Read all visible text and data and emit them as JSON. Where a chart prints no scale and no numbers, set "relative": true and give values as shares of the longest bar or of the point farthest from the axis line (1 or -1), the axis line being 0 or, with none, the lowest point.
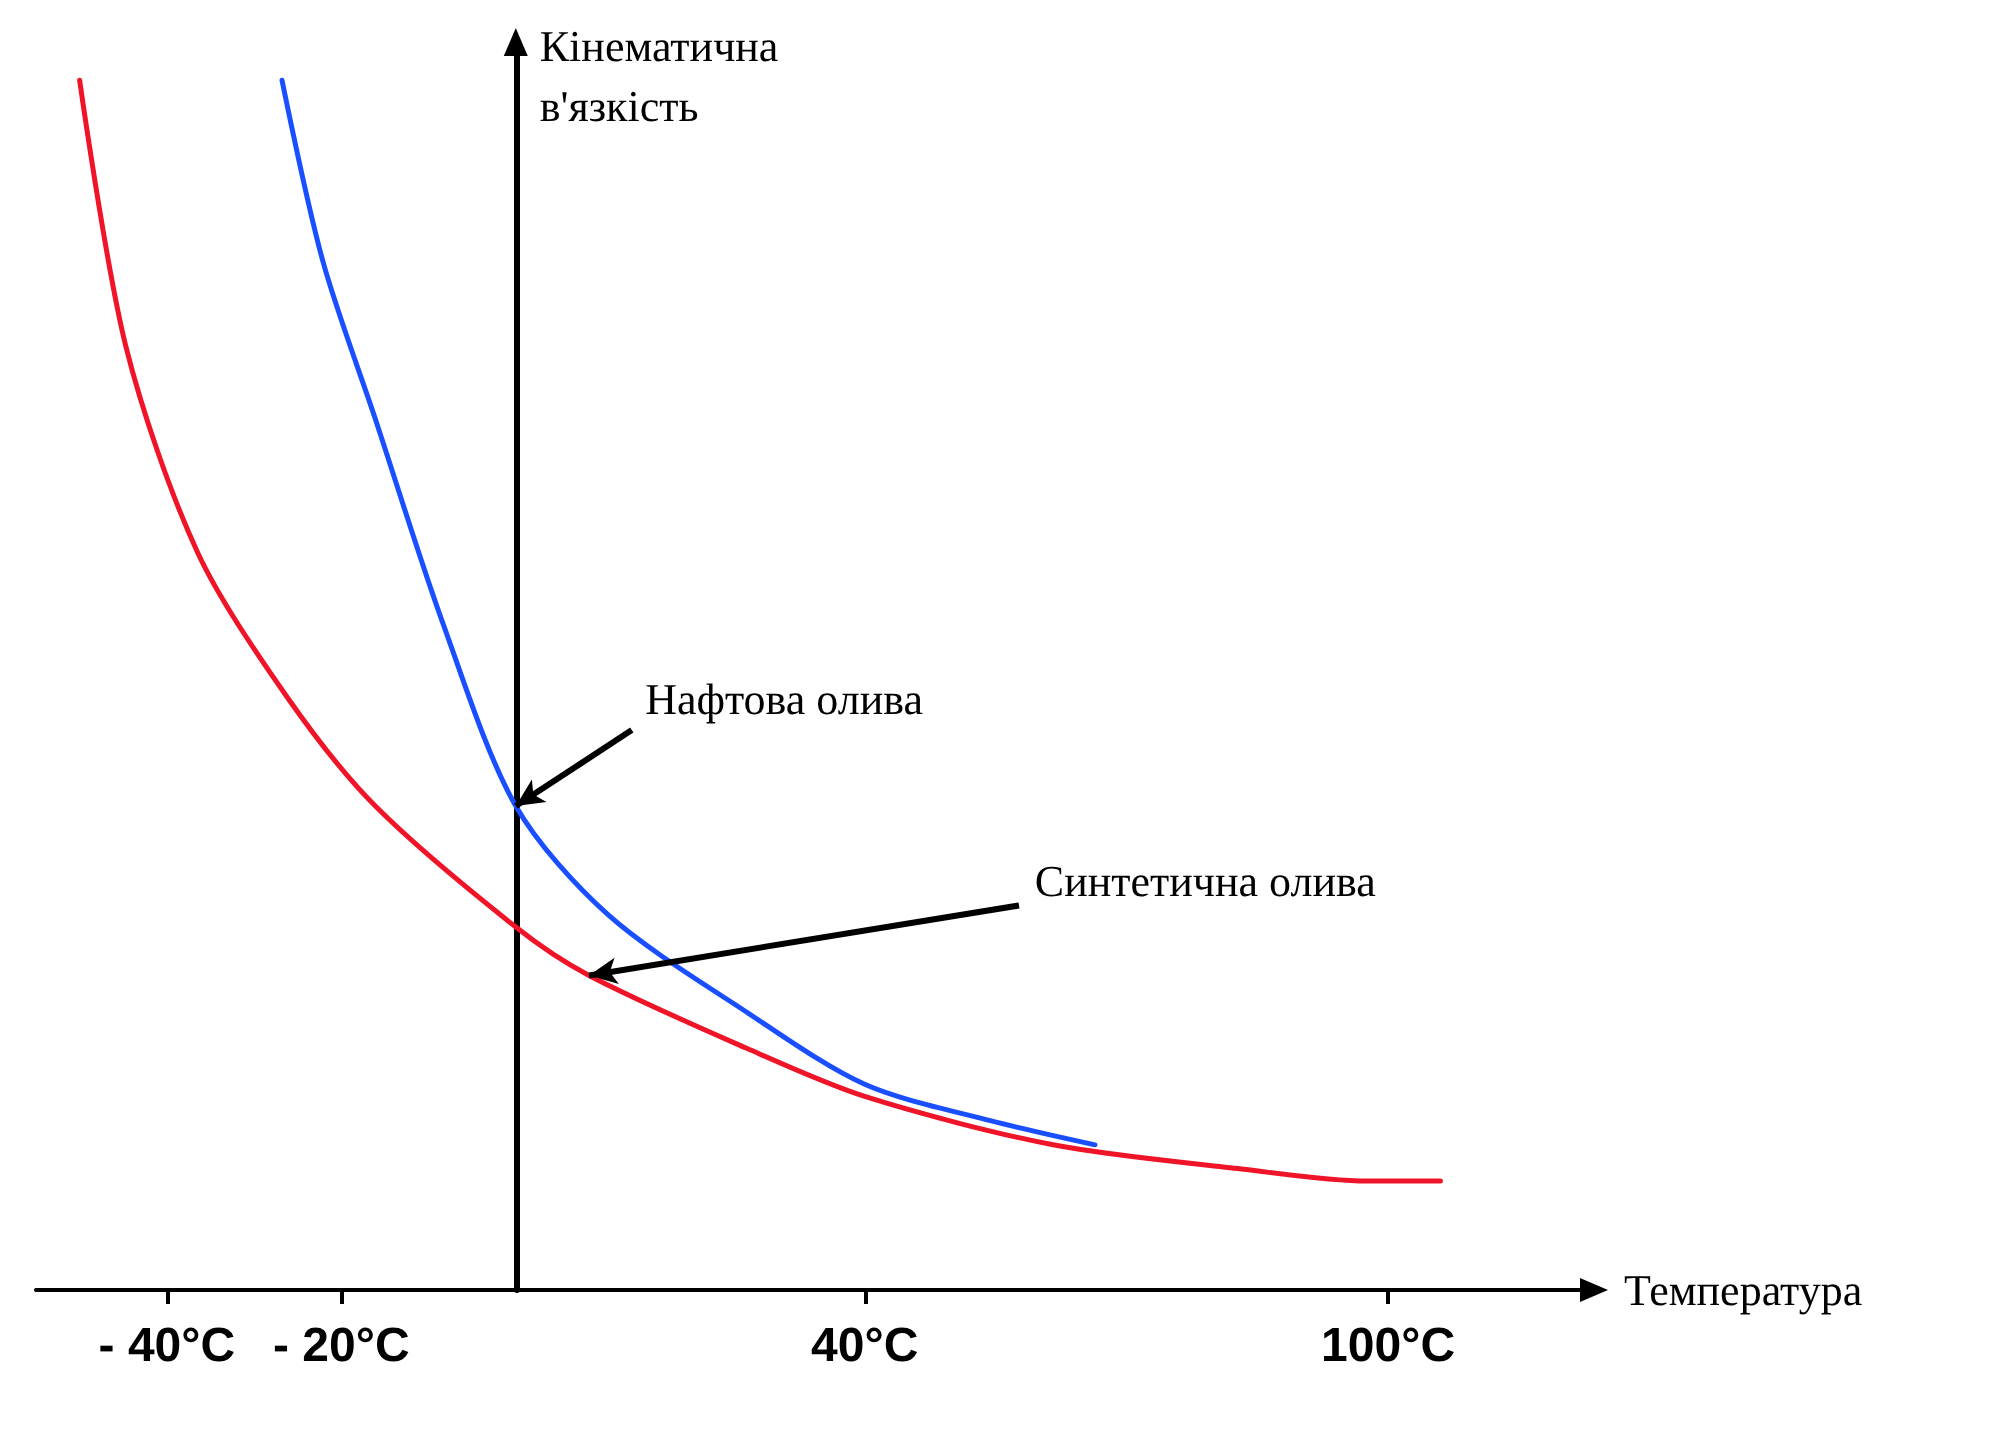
{
  "chart_data": {
    "type": "line",
    "relative": true,
    "xlabel": "Температура",
    "ylabel": "Кінематична\nв'язкість",
    "xlim": [
      -55,
      122
    ],
    "xticks": [
      {
        "value": -40,
        "label": "- 40°C"
      },
      {
        "value": -20,
        "label": "- 20°C"
      },
      {
        "value": 40,
        "label": "40°C"
      },
      {
        "value": 100,
        "label": "100°C"
      }
    ],
    "grid": false,
    "marker": "none",
    "line_style": "solid",
    "series": [
      {
        "color": "#1a4fff",
        "x": [
          -26.8,
          -22.1,
          -16.1,
          -8.3,
          0,
          10.6,
          26.4,
          40,
          54.4,
          66.4
        ],
        "values": [
          1,
          0.85,
          0.72,
          0.55,
          0.4,
          0.31,
          0.23,
          0.17,
          0.14,
          0.12
        ]
      },
      {
        "color": "#f01428",
        "x": [
          -50,
          -44.7,
          -36.5,
          -26.2,
          -16.1,
          0,
          8.4,
          26.4,
          40,
          61.6,
          83.2,
          97.6,
          106
        ],
        "values": [
          1,
          0.78,
          0.61,
          0.49,
          0.4,
          0.3,
          0.26,
          0.2,
          0.16,
          0.12,
          0.1,
          0.09,
          0.09
        ]
      }
    ],
    "annotations": [
      {
        "text": "Нафтова олива",
        "x": 0,
        "y": 0.4
      },
      {
        "text": "Синтетична олива",
        "x": 8.4,
        "y": 0.26
      }
    ]
  }
}
